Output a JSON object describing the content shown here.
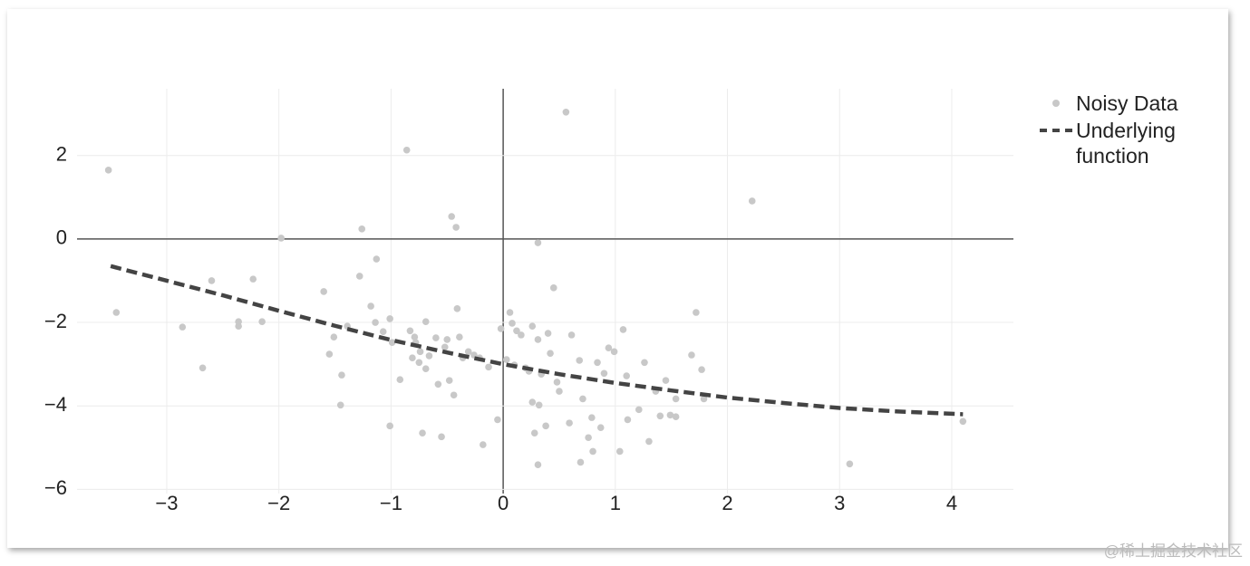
{
  "chart_data": {
    "type": "scatter",
    "xlim": [
      -3.8,
      4.55
    ],
    "ylim": [
      -6.1,
      3.6
    ],
    "xticks": [
      {
        "value": -3,
        "label": "−3"
      },
      {
        "value": -2,
        "label": "−2"
      },
      {
        "value": -1,
        "label": "−1"
      },
      0,
      1,
      2,
      3,
      4
    ],
    "yticks": [
      {
        "value": -6,
        "label": "−6"
      },
      {
        "value": -4,
        "label": "−4"
      },
      {
        "value": -2,
        "label": "−2"
      },
      0,
      2
    ],
    "grid": true,
    "legend": "right",
    "series": [
      {
        "name": "Noisy Data",
        "type": "scatter",
        "color": "#c8c8c8",
        "x": [
          -3.52,
          -3.45,
          -2.86,
          -2.68,
          -2.6,
          -2.36,
          -2.36,
          -2.23,
          -2.15,
          -1.98,
          -1.6,
          -1.55,
          -1.51,
          -1.44,
          -1.45,
          -1.39,
          -1.28,
          -1.26,
          -1.18,
          -1.13,
          -1.14,
          -1.07,
          -1.01,
          -1.01,
          -0.99,
          -0.92,
          -0.86,
          -0.83,
          -0.81,
          -0.79,
          -0.78,
          -0.75,
          -0.74,
          -0.72,
          -0.69,
          -0.69,
          -0.66,
          -0.6,
          -0.58,
          -0.55,
          -0.52,
          -0.5,
          -0.48,
          -0.46,
          -0.44,
          -0.42,
          -0.41,
          -0.39,
          -0.36,
          -0.31,
          -0.26,
          -0.21,
          -0.18,
          -0.13,
          -0.05,
          -0.02,
          0.03,
          0.06,
          0.1,
          0.08,
          0.12,
          0.16,
          0.2,
          0.23,
          0.26,
          0.26,
          0.28,
          0.31,
          0.31,
          0.32,
          0.31,
          0.34,
          0.38,
          0.4,
          0.42,
          0.45,
          0.48,
          0.5,
          0.56,
          0.59,
          0.61,
          0.68,
          0.69,
          0.71,
          0.76,
          0.79,
          0.8,
          0.84,
          0.87,
          0.9,
          0.94,
          0.99,
          1.04,
          1.07,
          1.1,
          1.11,
          1.21,
          1.26,
          1.3,
          1.36,
          1.4,
          1.45,
          1.49,
          1.54,
          1.54,
          1.68,
          1.72,
          1.77,
          1.79,
          2.22,
          3.09,
          4.1
        ],
        "values": [
          1.65,
          -1.76,
          -2.11,
          -3.09,
          -1.0,
          -1.98,
          -2.09,
          -0.96,
          -1.98,
          0.02,
          -1.26,
          -2.76,
          -2.35,
          -3.26,
          -3.98,
          -2.09,
          -0.89,
          0.24,
          -1.61,
          -0.48,
          -2.0,
          -2.22,
          -1.91,
          -4.48,
          -2.48,
          -3.37,
          2.13,
          -2.2,
          -2.85,
          -2.35,
          -2.48,
          -2.96,
          -2.7,
          -4.65,
          -1.98,
          -3.11,
          -2.8,
          -2.37,
          -3.48,
          -4.74,
          -2.59,
          -2.41,
          -3.39,
          0.54,
          -3.74,
          0.28,
          -1.67,
          -2.35,
          -2.85,
          -2.7,
          -2.78,
          -2.85,
          -4.93,
          -3.07,
          -4.33,
          -2.15,
          -2.89,
          -1.76,
          -3.02,
          -2.02,
          -2.2,
          -2.3,
          -3.09,
          -3.17,
          -3.91,
          -2.09,
          -4.65,
          -2.41,
          -0.09,
          -3.98,
          -5.41,
          -3.24,
          -4.48,
          -2.26,
          -2.74,
          -1.17,
          -3.43,
          -3.65,
          3.04,
          -4.41,
          -2.3,
          -2.91,
          -5.35,
          -3.83,
          -4.76,
          -4.28,
          -5.09,
          -2.96,
          -4.52,
          -3.22,
          -2.61,
          -2.7,
          -5.09,
          -2.17,
          -3.28,
          -4.33,
          -4.09,
          -2.96,
          -4.85,
          -3.65,
          -4.24,
          -3.39,
          -4.22,
          -4.26,
          -3.83,
          -2.78,
          -1.76,
          -3.13,
          -3.83,
          0.91,
          -5.39,
          -4.37
        ]
      },
      {
        "name": "Underlying function",
        "type": "line",
        "color": "#444444",
        "dash": true,
        "x": [
          -3.5,
          -3,
          -2.5,
          -2,
          -1.5,
          -1,
          -0.5,
          0,
          0.5,
          1,
          1.5,
          2,
          2.5,
          3,
          3.5,
          4.1
        ],
        "values": [
          -0.65,
          -1.0,
          -1.35,
          -1.72,
          -2.08,
          -2.42,
          -2.72,
          -3.0,
          -3.24,
          -3.45,
          -3.63,
          -3.8,
          -3.93,
          -4.05,
          -4.13,
          -4.2
        ]
      }
    ]
  },
  "watermark": "@稀土掘金技术社区"
}
